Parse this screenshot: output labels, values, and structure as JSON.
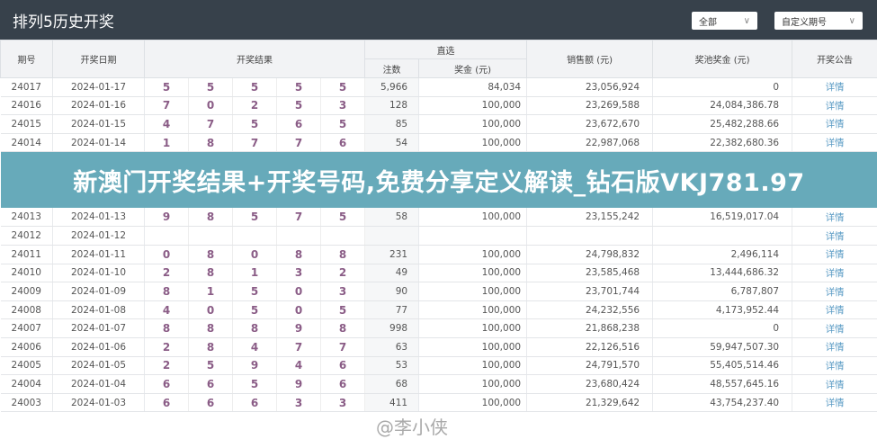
{
  "header": {
    "title": "排列5历史开奖",
    "filter_all": "全部",
    "filter_period": "自定义期号",
    "chevron": "∨"
  },
  "columns": {
    "period": "期号",
    "date": "开奖日期",
    "result": "开奖结果",
    "direct": "直选",
    "bets": "注数",
    "prize": "奖金 (元)",
    "sales": "销售额 (元)",
    "pool": "奖池奖金 (元)",
    "notice": "开奖公告"
  },
  "rows": [
    {
      "period": "24017",
      "date": "2024-01-17",
      "balls": [
        "5",
        "5",
        "5",
        "5",
        "5"
      ],
      "bets": "5,966",
      "prize": "84,034",
      "sales": "23,056,924",
      "pool": "0",
      "link": "详情"
    },
    {
      "period": "24016",
      "date": "2024-01-16",
      "balls": [
        "7",
        "0",
        "2",
        "5",
        "3"
      ],
      "bets": "128",
      "prize": "100,000",
      "sales": "23,269,588",
      "pool": "24,084,386.78",
      "link": "详情"
    },
    {
      "period": "24015",
      "date": "2024-01-15",
      "balls": [
        "4",
        "7",
        "5",
        "6",
        "5"
      ],
      "bets": "85",
      "prize": "100,000",
      "sales": "23,672,670",
      "pool": "25,482,288.66",
      "link": "详情"
    },
    {
      "period": "24014",
      "date": "2024-01-14",
      "balls": [
        "1",
        "8",
        "7",
        "7",
        "6"
      ],
      "bets": "54",
      "prize": "100,000",
      "sales": "22,987,068",
      "pool": "22,382,680.36",
      "link": "详情"
    },
    {
      "period": "24013",
      "date": "2024-01-13",
      "balls": [
        "9",
        "8",
        "5",
        "7",
        "5"
      ],
      "bets": "58",
      "prize": "100,000",
      "sales": "23,155,242",
      "pool": "16,519,017.04",
      "link": "详情"
    },
    {
      "period": "24012",
      "date": "2024-01-12",
      "balls": [
        "",
        "",
        "",
        "",
        ""
      ],
      "bets": "",
      "prize": "",
      "sales": "",
      "pool": "",
      "link": "详情"
    },
    {
      "period": "24011",
      "date": "2024-01-11",
      "balls": [
        "0",
        "8",
        "0",
        "8",
        "8"
      ],
      "bets": "231",
      "prize": "100,000",
      "sales": "24,798,832",
      "pool": "2,496,114",
      "link": "详情"
    },
    {
      "period": "24010",
      "date": "2024-01-10",
      "balls": [
        "2",
        "8",
        "1",
        "3",
        "2"
      ],
      "bets": "49",
      "prize": "100,000",
      "sales": "23,585,468",
      "pool": "13,444,686.32",
      "link": "详情"
    },
    {
      "period": "24009",
      "date": "2024-01-09",
      "balls": [
        "8",
        "1",
        "5",
        "0",
        "3"
      ],
      "bets": "90",
      "prize": "100,000",
      "sales": "23,701,744",
      "pool": "6,787,807",
      "link": "详情"
    },
    {
      "period": "24008",
      "date": "2024-01-08",
      "balls": [
        "4",
        "0",
        "5",
        "0",
        "5"
      ],
      "bets": "77",
      "prize": "100,000",
      "sales": "24,232,556",
      "pool": "4,173,952.44",
      "link": "详情"
    },
    {
      "period": "24007",
      "date": "2024-01-07",
      "balls": [
        "8",
        "8",
        "8",
        "9",
        "8"
      ],
      "bets": "998",
      "prize": "100,000",
      "sales": "21,868,238",
      "pool": "0",
      "link": "详情"
    },
    {
      "period": "24006",
      "date": "2024-01-06",
      "balls": [
        "2",
        "8",
        "4",
        "7",
        "7"
      ],
      "bets": "63",
      "prize": "100,000",
      "sales": "22,126,516",
      "pool": "59,947,507.30",
      "link": "详情"
    },
    {
      "period": "24005",
      "date": "2024-01-05",
      "balls": [
        "2",
        "5",
        "9",
        "4",
        "6"
      ],
      "bets": "53",
      "prize": "100,000",
      "sales": "24,791,570",
      "pool": "55,405,514.46",
      "link": "详情"
    },
    {
      "period": "24004",
      "date": "2024-01-04",
      "balls": [
        "6",
        "6",
        "5",
        "9",
        "6"
      ],
      "bets": "68",
      "prize": "100,000",
      "sales": "23,680,424",
      "pool": "48,557,645.16",
      "link": "详情"
    },
    {
      "period": "24003",
      "date": "2024-01-03",
      "balls": [
        "6",
        "6",
        "6",
        "3",
        "3"
      ],
      "bets": "411",
      "prize": "100,000",
      "sales": "21,329,642",
      "pool": "43,754,237.40",
      "link": "详情"
    }
  ],
  "banner": {
    "text": "新澳门开奖结果+开奖号码,免费分享定义解读_钻石版VKJ781.97"
  },
  "watermark": "@李小侠"
}
